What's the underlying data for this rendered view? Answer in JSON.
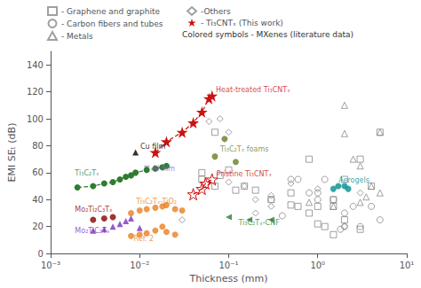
{
  "chart_data": {
    "type": "scatter",
    "xlabel": "Thickness (mm)",
    "ylabel": "EMI SEₜ (dB)",
    "log": "x",
    "grid": false,
    "legend": "top",
    "xlim": [
      0.001,
      10
    ],
    "xticks": [
      {
        "value": 0.001,
        "label": "10⁻³"
      },
      {
        "value": 0.01,
        "label": "10⁻²"
      },
      {
        "value": 0.1,
        "label": "10⁻¹"
      },
      {
        "value": 1,
        "label": "10⁰"
      },
      {
        "value": 10,
        "label": "10¹"
      }
    ],
    "ylim": [
      0,
      150
    ],
    "yticks": [
      0,
      20,
      40,
      60,
      80,
      100,
      120,
      140
    ],
    "series": [
      {
        "name": "- Graphene and graphite",
        "type": "scatter",
        "marker": "open_square",
        "color": "#888888",
        "x": [
          0.05,
          0.07,
          0.08,
          0.1,
          0.15,
          0.2,
          0.3,
          0.5,
          0.6,
          0.8,
          1.0,
          1.2,
          1.5,
          2.0,
          3.0,
          4.0,
          5.0,
          0.05,
          0.07,
          0.5,
          1.0,
          1.5,
          2.0,
          3.0,
          0.12,
          0.8,
          1.5
        ],
        "values": [
          60,
          90,
          58,
          62,
          50,
          47,
          40,
          36,
          35,
          30,
          22,
          20,
          14,
          25,
          18,
          50,
          90,
          55,
          50,
          45,
          35,
          40,
          55,
          70,
          47,
          70,
          35
        ]
      },
      {
        "name": "- Carbon fibers and tubes",
        "type": "scatter",
        "marker": "open_circle",
        "color": "#888888",
        "x": [
          0.5,
          1.0,
          1.5,
          2.0,
          3.0,
          0.3,
          1.2,
          2.5,
          0.8,
          0.6,
          1.0,
          4.0,
          5.0,
          0.4,
          2.0,
          1.8
        ],
        "values": [
          55,
          45,
          40,
          30,
          20,
          40,
          55,
          35,
          45,
          55,
          40,
          35,
          25,
          28,
          20,
          18
        ]
      },
      {
        "name": "- Metals",
        "type": "scatter",
        "marker": "open_triangle",
        "color": "#888888",
        "x": [
          2.0,
          3.0,
          5.0,
          4.0,
          0.8,
          2.5,
          1.5,
          3.5,
          2.0,
          5.0,
          3.0
        ],
        "values": [
          110,
          65,
          90,
          50,
          38,
          70,
          35,
          42,
          89,
          45,
          38
        ]
      },
      {
        "name": "-Others",
        "type": "scatter",
        "marker": "open_diamond",
        "color": "#888888",
        "x": [
          0.03,
          0.08,
          0.15,
          0.3,
          0.5,
          1.0,
          2.0,
          3.0,
          0.1,
          0.2,
          0.06,
          0.1,
          0.2,
          0.3
        ],
        "values": [
          25,
          100,
          50,
          43,
          52,
          48,
          20,
          45,
          90,
          30,
          98,
          53,
          40,
          35
        ]
      },
      {
        "type": "line",
        "line_style": "dashed",
        "marker": "circle",
        "color": "#2e7d2e",
        "x": [
          0.002,
          0.003,
          0.004,
          0.005,
          0.006,
          0.007,
          0.008,
          0.009,
          0.012,
          0.015,
          0.018,
          0.02
        ],
        "values": [
          49,
          50,
          52,
          53,
          55,
          57,
          58,
          60,
          62,
          63,
          64,
          65
        ]
      },
      {
        "type": "scatter",
        "marker": "circle",
        "color": "#6b7c25",
        "x": [
          0.07,
          0.09,
          0.12
        ],
        "values": [
          72,
          85,
          68
        ]
      },
      {
        "type": "scatter",
        "marker": "triangle_left",
        "color": "#2e7d2e",
        "x": [
          0.1,
          0.17,
          0.3
        ],
        "values": [
          27,
          25,
          25
        ]
      },
      {
        "type": "scatter",
        "marker": "circle",
        "color": "#e88020",
        "x": [
          0.008,
          0.01,
          0.012,
          0.015,
          0.018,
          0.02,
          0.025,
          0.03
        ],
        "values": [
          30,
          32,
          33,
          34,
          35,
          36,
          33,
          32
        ]
      },
      {
        "type": "scatter",
        "marker": "circle",
        "color": "#e88020",
        "x": [
          0.008,
          0.01,
          0.012,
          0.015,
          0.018,
          0.02,
          0.025
        ],
        "values": [
          13,
          14,
          15,
          17,
          20,
          16,
          14
        ]
      },
      {
        "type": "scatter",
        "marker": "circle",
        "color": "#8b0000",
        "x": [
          0.003,
          0.004,
          0.005
        ],
        "values": [
          25,
          26,
          27
        ]
      },
      {
        "type": "scatter",
        "marker": "triangle",
        "color": "#7b2fbe",
        "x": [
          0.003,
          0.004,
          0.005,
          0.006,
          0.007,
          0.008,
          0.01
        ],
        "values": [
          17,
          18,
          20,
          22,
          24,
          26,
          19
        ]
      },
      {
        "type": "scatter",
        "marker": "circle",
        "color": "#009090",
        "x": [
          1.5,
          1.7,
          2.0,
          2.2
        ],
        "values": [
          48,
          50,
          50,
          48
        ]
      },
      {
        "type": "scatter",
        "marker": "triangle",
        "color": "black",
        "x": [
          0.009
        ],
        "values": [
          75
        ]
      },
      {
        "type": "scatter",
        "marker": "triangle_down",
        "color": "#b09ae0",
        "x": [
          0.012
        ],
        "values": [
          63
        ]
      },
      {
        "name": "- Ti₃CNTₓ (This work)",
        "type": "line",
        "line_style": "dashed",
        "marker": "star",
        "color": "#cc1111",
        "x": [
          0.015,
          0.02,
          0.03,
          0.04,
          0.05,
          0.06,
          0.065
        ],
        "values": [
          75,
          83,
          90,
          97,
          105,
          115,
          117
        ]
      },
      {
        "type": "line",
        "line_style": "dashed",
        "marker": "open_star",
        "color": "#cc1111",
        "x": [
          0.04,
          0.05,
          0.055,
          0.065
        ],
        "values": [
          44,
          48,
          52,
          55
        ]
      }
    ],
    "annotations": [
      {
        "text": "Ti₃C₂Tₓ",
        "x": 0.00175,
        "y": 57,
        "color": "#2e7d2e"
      },
      {
        "text": "Heat-treated Ti₃CNTₓ",
        "x": 0.067,
        "y": 119,
        "color": "#cc1111"
      },
      {
        "text": "Pristine Ti₃CNTₓ",
        "x": 0.068,
        "y": 56,
        "color": "#cc1111"
      },
      {
        "text": "Cu film",
        "x": 0.0095,
        "y": 77,
        "color": "black"
      },
      {
        "text": "Al film",
        "x": 0.013,
        "y": 60,
        "color": "#9060c8"
      },
      {
        "text": "Mo₂Ti₂C₃Tₓ",
        "x": 0.00175,
        "y": 30,
        "color": "#8b0000"
      },
      {
        "text": "Mo₂TiC₂Tₓ",
        "x": 0.00175,
        "y": 14,
        "color": "#7b2fbe"
      },
      {
        "text": "Ti₃C₂Tₓ-TiO₂",
        "x": 0.0085,
        "y": 36,
        "color": "#e88020"
      },
      {
        "text": "Ref. 2",
        "x": 0.008,
        "y": 8,
        "color": "#e88020"
      },
      {
        "text": "Ti₃C₂Tₓ foams",
        "x": 0.075,
        "y": 75,
        "color": "#6b7c25"
      },
      {
        "text": "Ti₃C₂Tₓ-CNF",
        "x": 0.12,
        "y": 20,
        "color": "#2e7d2e"
      },
      {
        "text": "Aerogels",
        "x": 1.6,
        "y": 52,
        "color": "#009090"
      },
      {
        "text": "Colored symbols - MXenes (literature data)"
      }
    ]
  }
}
